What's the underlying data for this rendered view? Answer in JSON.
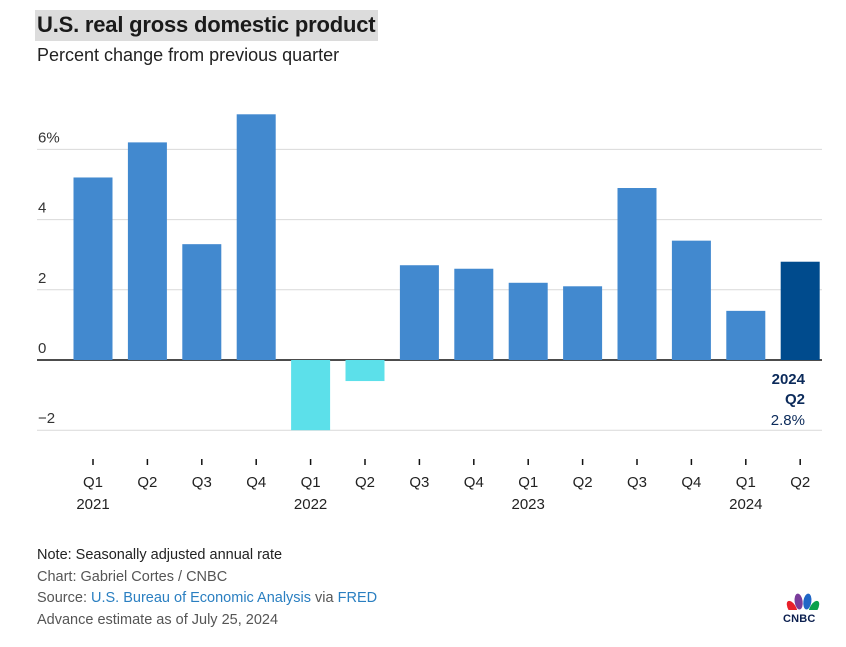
{
  "title": "U.S. real gross domestic product",
  "subtitle": "Percent change from previous quarter",
  "chart_data": {
    "type": "bar",
    "categories": [
      "Q1 2021",
      "Q2 2021",
      "Q3 2021",
      "Q4 2021",
      "Q1 2022",
      "Q2 2022",
      "Q3 2022",
      "Q4 2022",
      "Q1 2023",
      "Q2 2023",
      "Q3 2023",
      "Q4 2023",
      "Q1 2024",
      "Q2 2024"
    ],
    "tick_labels": [
      "Q1",
      "Q2",
      "Q3",
      "Q4",
      "Q1",
      "Q2",
      "Q3",
      "Q4",
      "Q1",
      "Q2",
      "Q3",
      "Q4",
      "Q1",
      "Q2"
    ],
    "year_labels": [
      {
        "index": 0,
        "label": "2021"
      },
      {
        "index": 4,
        "label": "2022"
      },
      {
        "index": 8,
        "label": "2023"
      },
      {
        "index": 12,
        "label": "2024"
      }
    ],
    "values": [
      5.2,
      6.2,
      3.3,
      7.0,
      -2.0,
      -0.6,
      2.7,
      2.6,
      2.2,
      2.1,
      4.9,
      3.4,
      1.4,
      2.8
    ],
    "ylim": [
      -2.6,
      7.6
    ],
    "y_ticks": [
      {
        "value": 6,
        "label": "6%"
      },
      {
        "value": 4,
        "label": "4"
      },
      {
        "value": 2,
        "label": "2"
      },
      {
        "value": 0,
        "label": "0"
      },
      {
        "value": -2,
        "label": "−2"
      }
    ],
    "colors": {
      "positive": "#4289cf",
      "negative": "#5ce0ea",
      "highlight": "#004b8d",
      "grid": "#d9d9d9",
      "axis": "#111111"
    },
    "highlight_index": 13,
    "annotation": {
      "year": "2024",
      "quarter": "Q2",
      "value": "2.8%"
    }
  },
  "notes": {
    "note": "Note: Seasonally adjusted annual rate",
    "credit": "Chart: Gabriel Cortes / CNBC",
    "source_prefix": "Source: ",
    "source_link1": "U.S. Bureau of Economic Analysis",
    "source_via": " via ",
    "source_link2": "FRED",
    "estimate": "Advance estimate as of July 25, 2024"
  },
  "logo": {
    "name": "cnbc-peacock-icon",
    "text": "CNBC"
  }
}
